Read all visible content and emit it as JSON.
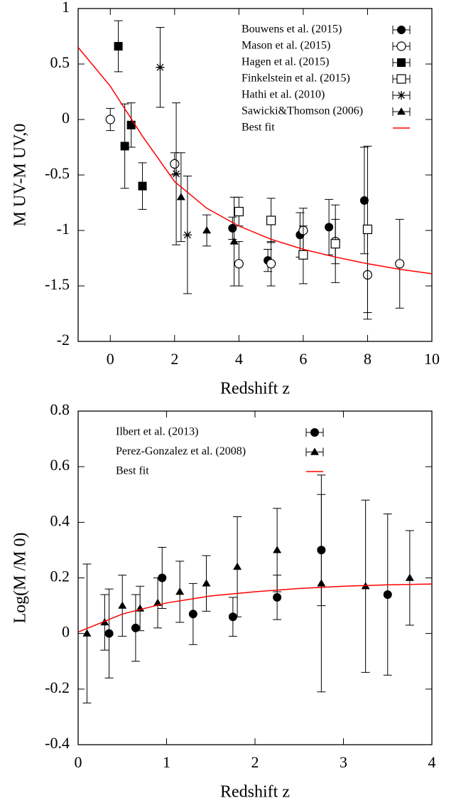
{
  "chart_data": [
    {
      "type": "scatter",
      "xlabel": "Redshift z",
      "ylabel": "M UV-M UV,0",
      "xlim": [
        -1,
        10
      ],
      "ylim": [
        -2,
        1
      ],
      "xticks": [
        0,
        2,
        4,
        6,
        8,
        10
      ],
      "yticks": [
        -2,
        -1.5,
        -1,
        -0.5,
        0,
        0.5,
        1
      ],
      "series": [
        {
          "name": "Bouwens et al. (2015)",
          "marker": "filled-circle",
          "color": "#000000",
          "x": [
            3.8,
            4.9,
            5.9,
            6.8,
            7.9
          ],
          "values": [
            -0.98,
            -1.27,
            -1.04,
            -0.97,
            -0.73
          ],
          "yerr": [
            0.1,
            0.1,
            0.2,
            0.25,
            0.48
          ]
        },
        {
          "name": "Mason et al. (2015)",
          "marker": "open-circle",
          "color": "#000000",
          "x": [
            0,
            2,
            4,
            5,
            6,
            7,
            8,
            9
          ],
          "values": [
            0,
            -0.4,
            -1.3,
            -1.3,
            -1.0,
            -1.1,
            -1.4,
            -1.3
          ],
          "yerr": [
            0.1,
            0.1,
            0.2,
            0.2,
            0.2,
            0.2,
            0.4,
            0.4
          ]
        },
        {
          "name": "Hagen et al. (2015)",
          "marker": "filled-square",
          "color": "#000000",
          "x": [
            0.25,
            0.45,
            0.65,
            1.0
          ],
          "values": [
            0.66,
            -0.24,
            -0.05,
            -0.6
          ],
          "yerr": [
            0.23,
            0.38,
            0.2,
            0.21
          ]
        },
        {
          "name": "Finkelstein et al. (2015)",
          "marker": "open-square",
          "color": "#000000",
          "x": [
            4,
            5,
            6,
            7,
            8
          ],
          "values": [
            -0.83,
            -0.91,
            -1.22,
            -1.12,
            -0.99
          ],
          "yerr": [
            0.13,
            0.2,
            0.26,
            0.35,
            0.75
          ]
        },
        {
          "name": "Hathi et al. (2010)",
          "marker": "asterisk",
          "color": "#000000",
          "x": [
            1.55,
            2.05,
            2.4
          ],
          "values": [
            0.47,
            -0.49,
            -1.04
          ],
          "yerr": [
            0.36,
            0.64,
            0.53
          ]
        },
        {
          "name": "Sawicki&Thomson (2006)",
          "marker": "triangle",
          "color": "#000000",
          "x": [
            2.2,
            3,
            3.85
          ],
          "values": [
            -0.7,
            -1.0,
            -1.1
          ],
          "yerr": [
            0.4,
            0.14,
            0.4
          ]
        },
        {
          "name": "Best fit",
          "marker": "line",
          "color": "#ff0000",
          "x": [
            -1,
            0,
            1,
            2,
            3,
            4,
            5,
            6,
            7,
            8,
            9,
            10
          ],
          "values": [
            0.65,
            0.3,
            -0.15,
            -0.56,
            -0.8,
            -0.96,
            -1.08,
            -1.17,
            -1.24,
            -1.3,
            -1.35,
            -1.39
          ]
        }
      ]
    },
    {
      "type": "scatter",
      "xlabel": "Redshift z",
      "ylabel": "Log(M /M 0)",
      "xlim": [
        0,
        4
      ],
      "ylim": [
        -0.4,
        0.8
      ],
      "xticks": [
        0,
        1,
        2,
        3,
        4
      ],
      "yticks": [
        -0.4,
        -0.2,
        0,
        0.2,
        0.4,
        0.6,
        0.8
      ],
      "series": [
        {
          "name": "Ilbert et al. (2013)",
          "marker": "filled-circle",
          "color": "#000000",
          "x": [
            0.35,
            0.65,
            0.95,
            1.3,
            1.75,
            2.25,
            2.75,
            3.5
          ],
          "values": [
            0,
            0.02,
            0.2,
            0.07,
            0.06,
            0.13,
            0.3,
            0.14
          ],
          "yerr": [
            0.16,
            0.12,
            0.11,
            0.11,
            0.07,
            0.08,
            0.2,
            0.29
          ]
        },
        {
          "name": "Perez-Gonzalez et al. (2008)",
          "marker": "triangle",
          "color": "#000000",
          "x": [
            0.1,
            0.3,
            0.5,
            0.7,
            0.9,
            1.15,
            1.45,
            1.8,
            2.25,
            2.75,
            3.25,
            3.75
          ],
          "values": [
            0,
            0.04,
            0.1,
            0.09,
            0.11,
            0.15,
            0.18,
            0.24,
            0.3,
            0.18,
            0.17,
            0.2
          ],
          "yerr": [
            0.25,
            0.1,
            0.11,
            0.08,
            0.09,
            0.11,
            0.1,
            0.18,
            0.15,
            0.39,
            0.31,
            0.17
          ]
        },
        {
          "name": "Best fit",
          "marker": "line",
          "color": "#ff0000",
          "x": [
            0,
            0.5,
            1,
            1.5,
            2,
            2.5,
            3,
            3.5,
            4
          ],
          "values": [
            0.005,
            0.07,
            0.11,
            0.135,
            0.15,
            0.162,
            0.17,
            0.175,
            0.178
          ]
        }
      ]
    }
  ]
}
